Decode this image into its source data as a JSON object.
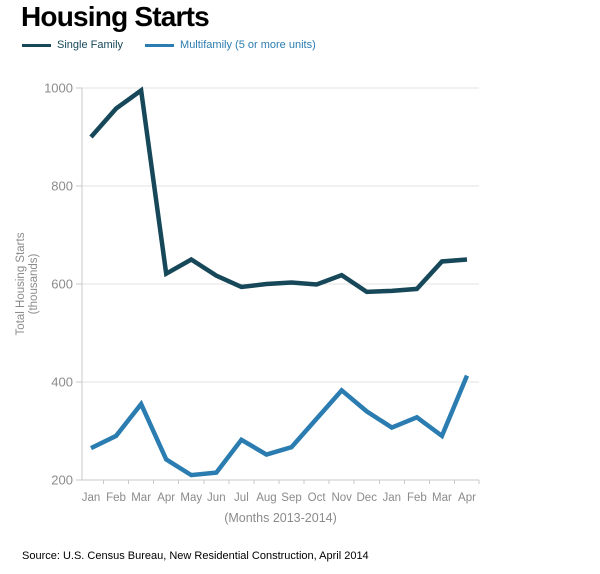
{
  "title": "Housing Starts",
  "source": "Source: U.S. Census Bureau, New Residential Construction, April 2014",
  "colors": {
    "single_family": "#17485a",
    "multifamily": "#2b7cb0",
    "axis_text": "#8b8b8b",
    "gridline": "#e3e3e3",
    "axis_line": "#c9c9c9",
    "title_text": "#000000"
  },
  "chart_data": {
    "type": "line",
    "title": "Housing Starts",
    "categories": [
      "Jan",
      "Feb",
      "Mar",
      "Apr",
      "May",
      "Jun",
      "Jul",
      "Aug",
      "Sep",
      "Oct",
      "Nov",
      "Dec",
      "Jan",
      "Feb",
      "Mar",
      "Apr"
    ],
    "xlabel": "(Months 2013-2014)",
    "ylabel_lines": [
      "Total Housing Starts",
      "(thousands)"
    ],
    "ylim": [
      200,
      1000
    ],
    "yticks": [
      200,
      400,
      600,
      800,
      1000
    ],
    "grid": "horizontal",
    "legend_position": "top-left",
    "series": [
      {
        "name": "Single Family",
        "color": "#17485a",
        "values": [
          900,
          958,
          995,
          621,
          650,
          617,
          594,
          600,
          603,
          599,
          618,
          584,
          586,
          590,
          646,
          650
        ]
      },
      {
        "name": "Multifamily (5 or more units)",
        "color": "#2b7cb0",
        "values": [
          265,
          290,
          355,
          242,
          210,
          215,
          282,
          252,
          267,
          325,
          383,
          340,
          307,
          328,
          290,
          413
        ]
      }
    ]
  }
}
